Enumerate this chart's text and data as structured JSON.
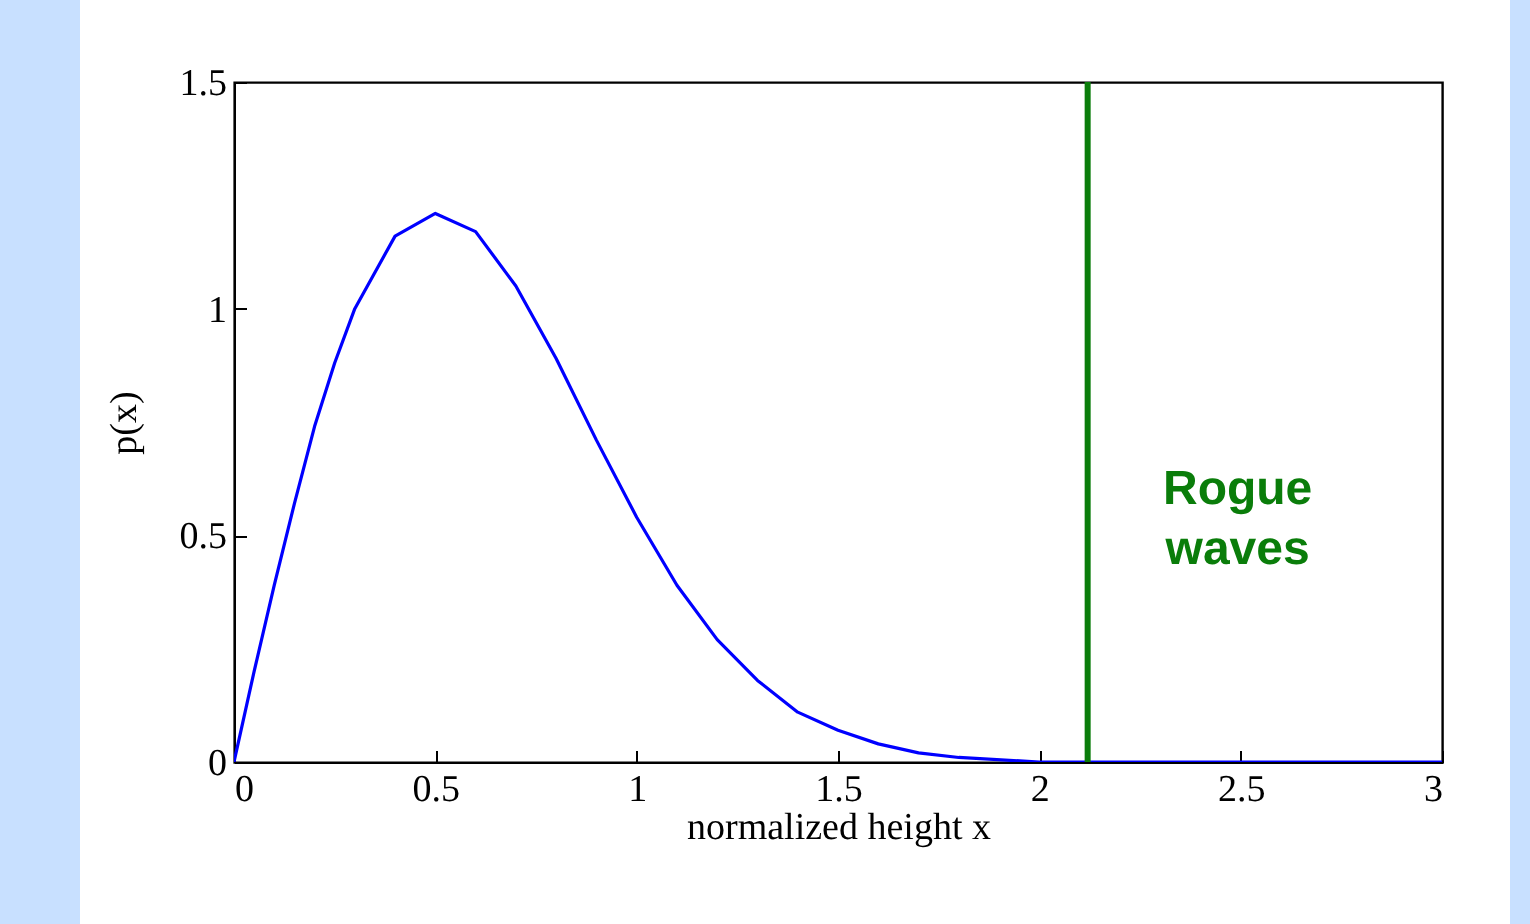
{
  "chart_data": {
    "type": "line",
    "xlabel": "normalized height x",
    "ylabel": "p(x)",
    "x": [
      0,
      0.05,
      0.1,
      0.15,
      0.2,
      0.25,
      0.3,
      0.4,
      0.5,
      0.6,
      0.7,
      0.8,
      0.9,
      1.0,
      1.1,
      1.2,
      1.3,
      1.4,
      1.5,
      1.6,
      1.7,
      1.8,
      2.0,
      2.5,
      3.0
    ],
    "series": [
      {
        "color": "#0000ff",
        "values": [
          0,
          0.2,
          0.39,
          0.57,
          0.74,
          0.88,
          1.0,
          1.16,
          1.21,
          1.17,
          1.05,
          0.89,
          0.71,
          0.54,
          0.39,
          0.27,
          0.18,
          0.11,
          0.07,
          0.04,
          0.02,
          0.01,
          0,
          0,
          0
        ]
      }
    ],
    "xlim": [
      0,
      3
    ],
    "xticks": [
      0,
      0.5,
      1,
      1.5,
      2,
      2.5,
      3
    ],
    "ylim": [
      0,
      1.5
    ],
    "yticks": [
      0,
      0.5,
      1,
      1.5
    ],
    "ref_lines": [
      {
        "axis": "x",
        "value": 2.12,
        "label": "Rogue waves",
        "color": "#0a7d0a"
      }
    ]
  }
}
